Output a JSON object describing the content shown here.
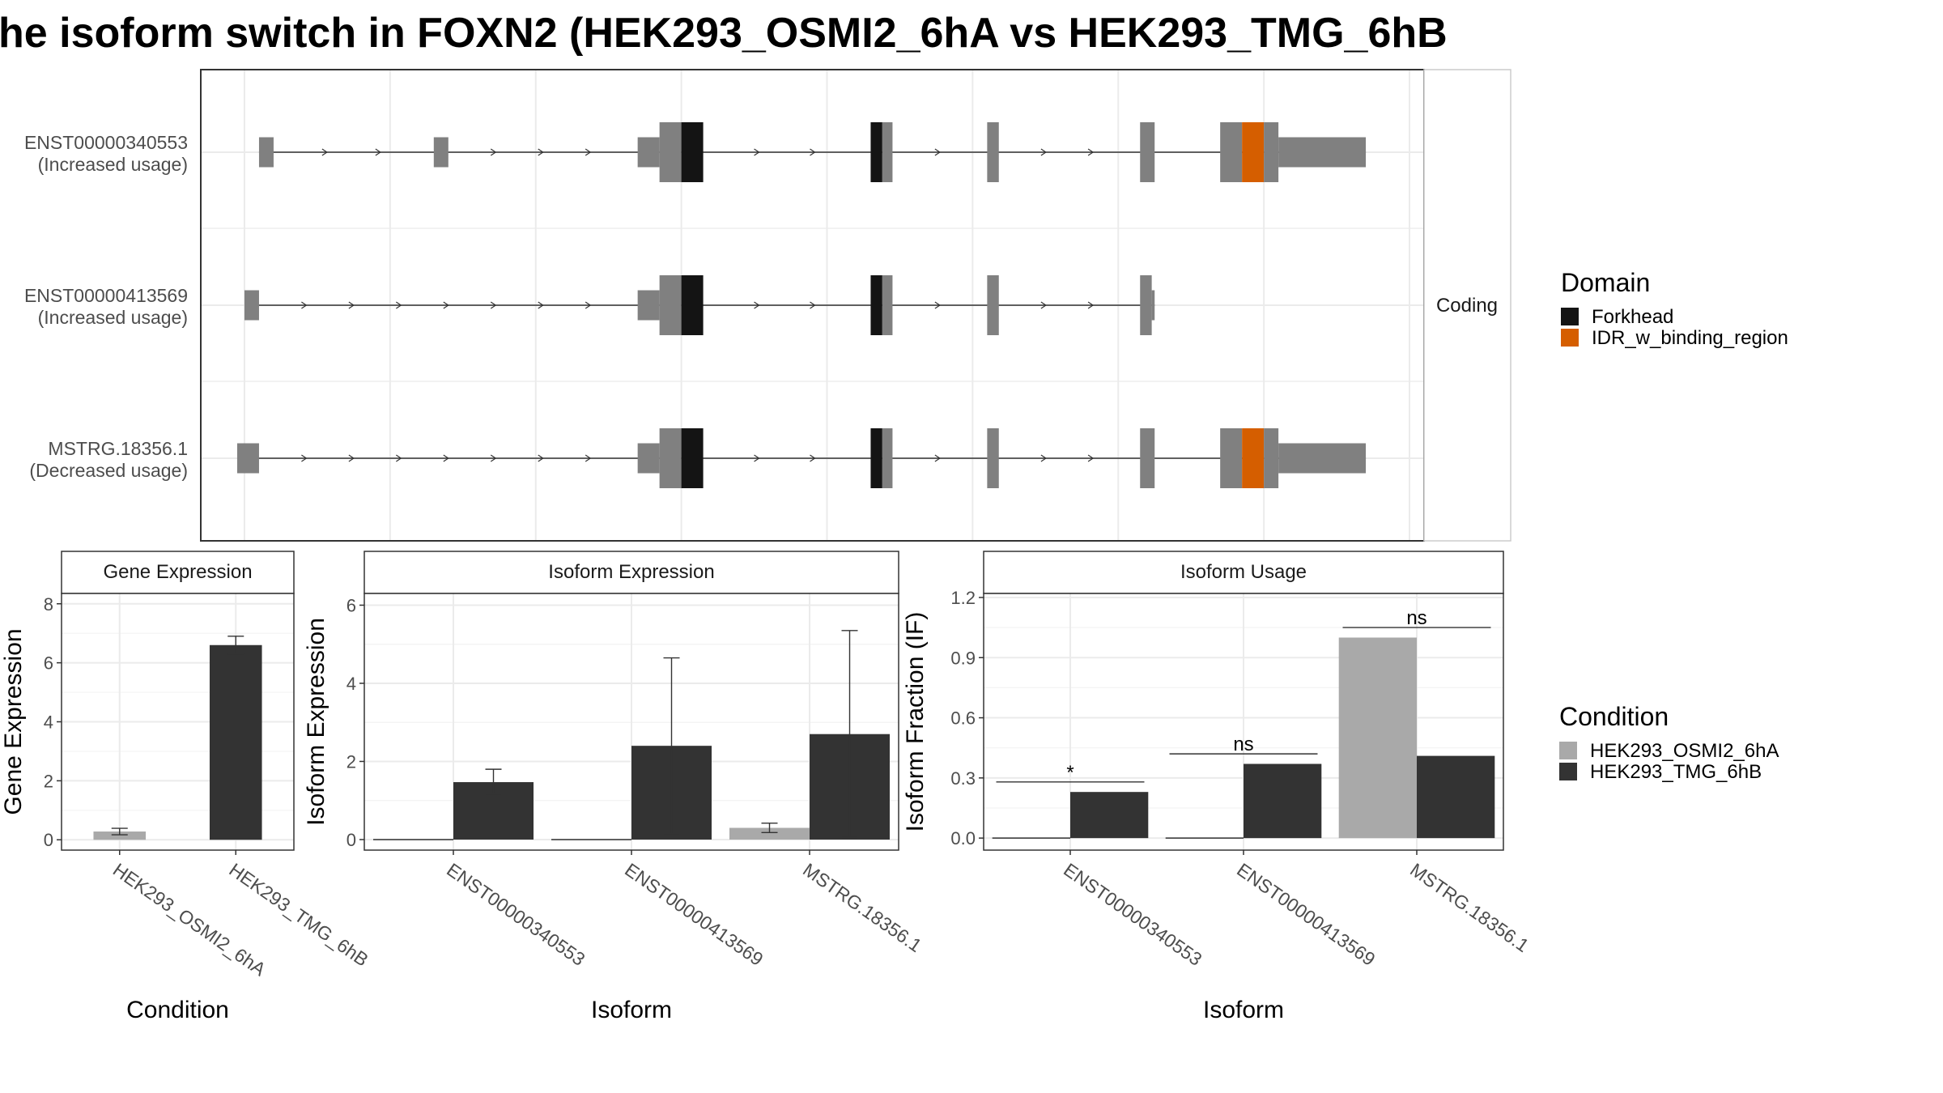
{
  "title": "he isoform switch in FOXN2 (HEK293_OSMI2_6hA vs HEK293_TMG_6hB",
  "colors": {
    "exon": "#808080",
    "forkhead": "#141414",
    "idr": "#d55e00",
    "cond_a": "#a9a9a9",
    "cond_b": "#333333",
    "grid": "#ebebeb",
    "panel_border": "#333333",
    "strip_bg": "#ffffff",
    "text": "#4d4d4d"
  },
  "chart_data": [
    {
      "type": "gene-structure",
      "strip_label": "Coding",
      "tracks": [
        {
          "id": "ENST00000340553",
          "label": "ENST00000340553",
          "sublabel": "(Increased usage)",
          "exons": [
            {
              "start": 1.0,
              "end": 2.0,
              "kind": "utr"
            },
            {
              "start": 13.0,
              "end": 14.0,
              "kind": "utr"
            },
            {
              "start": 27.0,
              "end": 28.5,
              "kind": "utr"
            },
            {
              "start": 28.5,
              "end": 30.0,
              "kind": "cds"
            },
            {
              "start": 30.0,
              "end": 31.5,
              "kind": "forkhead"
            },
            {
              "start": 43.0,
              "end": 43.8,
              "kind": "forkhead"
            },
            {
              "start": 43.8,
              "end": 44.5,
              "kind": "cds"
            },
            {
              "start": 51.0,
              "end": 51.8,
              "kind": "cds"
            },
            {
              "start": 61.5,
              "end": 62.5,
              "kind": "cds"
            },
            {
              "start": 67.0,
              "end": 68.5,
              "kind": "cds"
            },
            {
              "start": 68.5,
              "end": 70.0,
              "kind": "idr"
            },
            {
              "start": 70.0,
              "end": 71.0,
              "kind": "cds"
            },
            {
              "start": 71.0,
              "end": 77.0,
              "kind": "utr"
            }
          ]
        },
        {
          "id": "ENST00000413569",
          "label": "ENST00000413569",
          "sublabel": "(Increased usage)",
          "exons": [
            {
              "start": 0.0,
              "end": 1.0,
              "kind": "utr"
            },
            {
              "start": 27.0,
              "end": 28.5,
              "kind": "utr"
            },
            {
              "start": 28.5,
              "end": 30.0,
              "kind": "cds"
            },
            {
              "start": 30.0,
              "end": 31.5,
              "kind": "forkhead"
            },
            {
              "start": 43.0,
              "end": 43.8,
              "kind": "forkhead"
            },
            {
              "start": 43.8,
              "end": 44.5,
              "kind": "cds"
            },
            {
              "start": 51.0,
              "end": 51.8,
              "kind": "cds"
            },
            {
              "start": 61.5,
              "end": 62.3,
              "kind": "cds"
            },
            {
              "start": 62.3,
              "end": 62.5,
              "kind": "utr"
            }
          ]
        },
        {
          "id": "MSTRG.18356.1",
          "label": "MSTRG.18356.1",
          "sublabel": "(Decreased usage)",
          "exons": [
            {
              "start": -0.5,
              "end": 1.0,
              "kind": "utr"
            },
            {
              "start": 27.0,
              "end": 28.5,
              "kind": "utr"
            },
            {
              "start": 28.5,
              "end": 30.0,
              "kind": "cds"
            },
            {
              "start": 30.0,
              "end": 31.5,
              "kind": "forkhead"
            },
            {
              "start": 43.0,
              "end": 43.8,
              "kind": "forkhead"
            },
            {
              "start": 43.8,
              "end": 44.5,
              "kind": "cds"
            },
            {
              "start": 51.0,
              "end": 51.8,
              "kind": "cds"
            },
            {
              "start": 61.5,
              "end": 62.5,
              "kind": "cds"
            },
            {
              "start": 67.0,
              "end": 68.5,
              "kind": "cds"
            },
            {
              "start": 68.5,
              "end": 70.0,
              "kind": "idr"
            },
            {
              "start": 70.0,
              "end": 71.0,
              "kind": "cds"
            },
            {
              "start": 71.0,
              "end": 77.0,
              "kind": "utr"
            }
          ]
        }
      ],
      "domain_legend": {
        "title": "Domain",
        "items": [
          {
            "label": "Forkhead",
            "color": "#141414"
          },
          {
            "label": "IDR_w_binding_region",
            "color": "#d55e00"
          }
        ]
      }
    },
    {
      "type": "bar",
      "strip_label": "Gene Expression",
      "xlabel": "Condition",
      "ylabel": "Gene Expression",
      "ylim": [
        -0.35,
        8.35
      ],
      "yticks": [
        "0",
        "2",
        "4",
        "6",
        "8"
      ],
      "categories": [
        "HEK293_OSMI2_6hA",
        "HEK293_TMG_6hB"
      ],
      "bars": [
        {
          "category": "HEK293_OSMI2_6hA",
          "condition": "HEK293_OSMI2_6hA",
          "value": 0.28,
          "err_low": 0.17,
          "err_high": 0.39
        },
        {
          "category": "HEK293_TMG_6hB",
          "condition": "HEK293_TMG_6hB",
          "value": 6.6,
          "err_low": 6.3,
          "err_high": 6.9
        }
      ]
    },
    {
      "type": "bar",
      "strip_label": "Isoform Expression",
      "xlabel": "Isoform",
      "ylabel": "Isoform Expression",
      "ylim": [
        -0.27,
        6.3
      ],
      "yticks": [
        "0",
        "2",
        "4",
        "6"
      ],
      "categories": [
        "ENST00000340553",
        "ENST00000413569",
        "MSTRG.18356.1"
      ],
      "series": [
        {
          "name": "HEK293_OSMI2_6hA",
          "values": [
            0.0,
            0.0,
            0.3
          ],
          "err_low": [
            0.0,
            0.0,
            0.18
          ],
          "err_high": [
            0.0,
            0.0,
            0.42
          ]
        },
        {
          "name": "HEK293_TMG_6hB",
          "values": [
            1.47,
            2.4,
            2.7
          ],
          "err_low": [
            1.17,
            0.15,
            0.05
          ],
          "err_high": [
            1.8,
            4.65,
            5.35
          ]
        }
      ]
    },
    {
      "type": "bar",
      "strip_label": "Isoform Usage",
      "xlabel": "Isoform",
      "ylabel": "Isoform Fraction (IF)",
      "ylim": [
        -0.06,
        1.22
      ],
      "yticks": [
        "0.0",
        "0.3",
        "0.6",
        "0.9",
        "1.2"
      ],
      "categories": [
        "ENST00000340553",
        "ENST00000413569",
        "MSTRG.18356.1"
      ],
      "series": [
        {
          "name": "HEK293_OSMI2_6hA",
          "values": [
            0.0,
            0.0,
            1.0
          ]
        },
        {
          "name": "HEK293_TMG_6hB",
          "values": [
            0.23,
            0.37,
            0.41
          ]
        }
      ],
      "annotations": [
        {
          "category": "ENST00000340553",
          "text": "*",
          "y": 0.28
        },
        {
          "category": "ENST00000413569",
          "text": "ns",
          "y": 0.42
        },
        {
          "category": "MSTRG.18356.1",
          "text": "ns",
          "y": 1.05
        }
      ]
    }
  ],
  "condition_legend": {
    "title": "Condition",
    "items": [
      {
        "label": "HEK293_OSMI2_6hA",
        "color": "#a9a9a9"
      },
      {
        "label": "HEK293_TMG_6hB",
        "color": "#333333"
      }
    ]
  }
}
